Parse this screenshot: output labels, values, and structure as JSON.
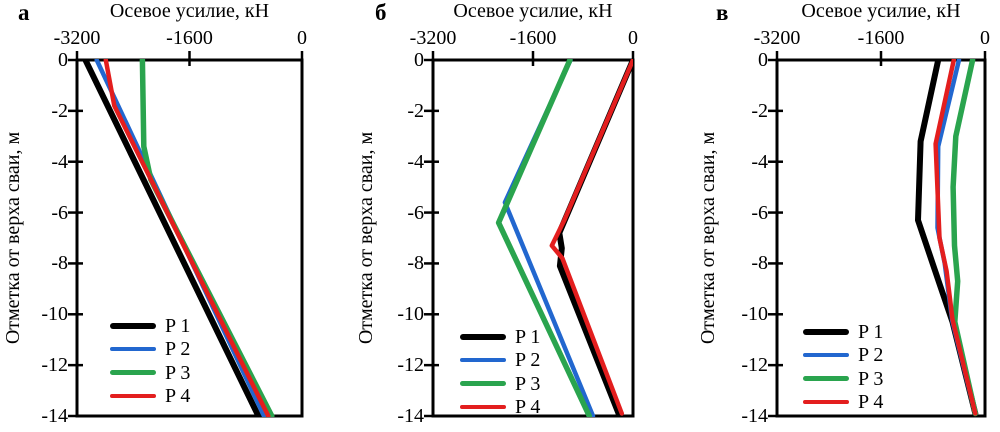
{
  "figure": {
    "xlabel": "Осевое усилие, кН",
    "ylabel": "Отметка от верха сваи, м",
    "x_ticks": [
      -3200,
      -1600,
      0
    ],
    "y_ticks": [
      0,
      -2,
      -4,
      -6,
      -8,
      -10,
      -12,
      -14
    ],
    "legend_labels": [
      "P 1",
      "P 2",
      "P 3",
      "P 4"
    ],
    "colors": {
      "P 1": "#000000",
      "P 2": "#2267cf",
      "P 3": "#2aa44e",
      "P 4": "#e31e1e"
    }
  },
  "chart_data": [
    {
      "type": "line",
      "panel_label": "а",
      "title": "Осевое усилие, кН",
      "xlabel": "Осевое усилие, кН",
      "ylabel": "Отметка от верха сваи, м",
      "xlim": [
        -3200,
        0
      ],
      "ylim": [
        -14,
        0
      ],
      "x_ticks": [
        -3200,
        -1600,
        0
      ],
      "y_ticks": [
        0,
        -2,
        -4,
        -6,
        -8,
        -10,
        -12,
        -14
      ],
      "legend_position": "lower-left-inside",
      "grid": false,
      "series": [
        {
          "name": "P 1",
          "color": "#000000",
          "stroke_width": 6,
          "points": [
            [
              -3080,
              0
            ],
            [
              -620,
              -14
            ]
          ]
        },
        {
          "name": "P 2",
          "color": "#2267cf",
          "stroke_width": 4.5,
          "points": [
            [
              -2920,
              0
            ],
            [
              -540,
              -14
            ]
          ]
        },
        {
          "name": "P 3",
          "color": "#2aa44e",
          "stroke_width": 5.5,
          "points": [
            [
              -2270,
              0
            ],
            [
              -2250,
              -3.4
            ],
            [
              -2150,
              -4.7
            ],
            [
              -2060,
              -5.2
            ],
            [
              -430,
              -14
            ]
          ]
        },
        {
          "name": "P 4",
          "color": "#e31e1e",
          "stroke_width": 4.5,
          "points": [
            [
              -2790,
              0
            ],
            [
              -2670,
              -1.8
            ],
            [
              -480,
              -14
            ]
          ]
        }
      ]
    },
    {
      "type": "line",
      "panel_label": "б",
      "title": "Осевое усилие, кН",
      "xlabel": "Осевое усилие, кН",
      "ylabel": "Отметка от верха сваи, м",
      "xlim": [
        -3200,
        0
      ],
      "ylim": [
        -14,
        0
      ],
      "x_ticks": [
        -3200,
        -1600,
        0
      ],
      "y_ticks": [
        0,
        -2,
        -4,
        -6,
        -8,
        -10,
        -12,
        -14
      ],
      "legend_position": "lower-left-inside",
      "grid": false,
      "series": [
        {
          "name": "P 1",
          "color": "#000000",
          "stroke_width": 6,
          "points": [
            [
              0,
              0
            ],
            [
              -1180,
              -6.8
            ],
            [
              -1140,
              -7.4
            ],
            [
              -1170,
              -8.1
            ],
            [
              -230,
              -13.9
            ]
          ]
        },
        {
          "name": "P 2",
          "color": "#2267cf",
          "stroke_width": 4.5,
          "points": [
            [
              -1000,
              0
            ],
            [
              -2050,
              -5.6
            ],
            [
              -640,
              -14
            ]
          ]
        },
        {
          "name": "P 3",
          "color": "#2aa44e",
          "stroke_width": 5.5,
          "points": [
            [
              -1010,
              0
            ],
            [
              -2150,
              -6.4
            ],
            [
              -700,
              -14
            ]
          ]
        },
        {
          "name": "P 4",
          "color": "#e31e1e",
          "stroke_width": 4.5,
          "points": [
            [
              0,
              0
            ],
            [
              -1100,
              -6.3
            ],
            [
              -1300,
              -7.3
            ],
            [
              -1130,
              -7.8
            ],
            [
              -180,
              -13.9
            ]
          ]
        }
      ]
    },
    {
      "type": "line",
      "panel_label": "в",
      "title": "Осевое усилие, кН",
      "xlabel": "Осевое усилие, кН",
      "ylabel": "Отметка от верха сваи, м",
      "xlim": [
        -3200,
        0
      ],
      "ylim": [
        -14,
        0
      ],
      "x_ticks": [
        -3200,
        -1600,
        0
      ],
      "y_ticks": [
        0,
        -2,
        -4,
        -6,
        -8,
        -10,
        -12,
        -14
      ],
      "legend_position": "lower-left-inside",
      "grid": false,
      "series": [
        {
          "name": "P 1",
          "color": "#000000",
          "stroke_width": 6,
          "points": [
            [
              -720,
              0
            ],
            [
              -990,
              -3.2
            ],
            [
              -1030,
              -6.3
            ],
            [
              -700,
              -8.8
            ],
            [
              -500,
              -10.3
            ],
            [
              -150,
              -13.9
            ]
          ]
        },
        {
          "name": "P 2",
          "color": "#2267cf",
          "stroke_width": 4.5,
          "points": [
            [
              -400,
              0
            ],
            [
              -720,
              -3.4
            ],
            [
              -730,
              -6.6
            ],
            [
              -620,
              -8.0
            ],
            [
              -505,
              -10.25
            ],
            [
              -152,
              -13.9
            ]
          ]
        },
        {
          "name": "P 3",
          "color": "#2aa44e",
          "stroke_width": 5.5,
          "points": [
            [
              -190,
              0
            ],
            [
              -450,
              -3.0
            ],
            [
              -490,
              -5.0
            ],
            [
              -470,
              -7.3
            ],
            [
              -420,
              -8.7
            ],
            [
              -465,
              -10.3
            ],
            [
              -148,
              -13.9
            ]
          ]
        },
        {
          "name": "P 4",
          "color": "#e31e1e",
          "stroke_width": 4.5,
          "points": [
            [
              -480,
              0
            ],
            [
              -760,
              -3.3
            ],
            [
              -700,
              -7.0
            ],
            [
              -590,
              -8.3
            ],
            [
              -500,
              -10.2
            ],
            [
              -150,
              -13.9
            ]
          ]
        }
      ]
    }
  ]
}
